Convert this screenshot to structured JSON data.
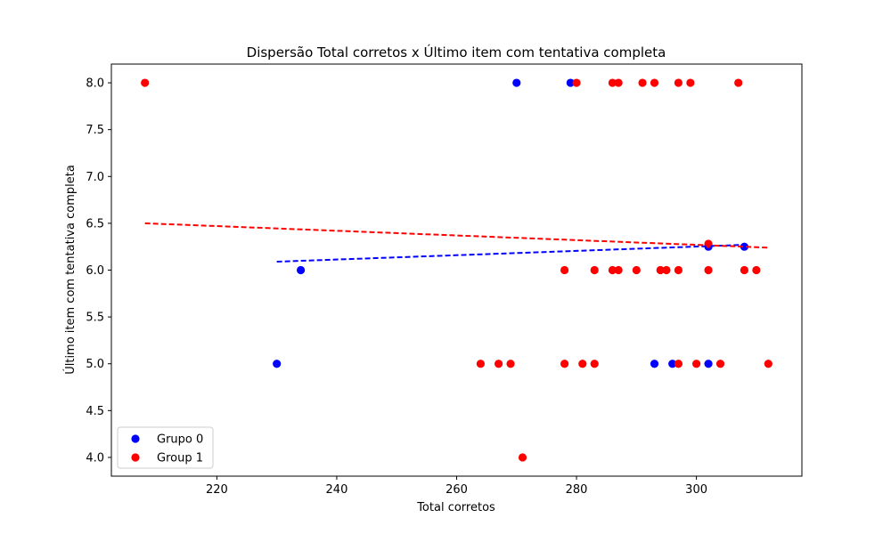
{
  "chart_data": {
    "type": "scatter",
    "title": "Dispersão Total corretos x Último item com tentativa completa",
    "xlabel": "Total corretos",
    "ylabel": "Último item com tentativa completa",
    "xlim": [
      202.4,
      317.6
    ],
    "ylim": [
      3.8,
      8.2
    ],
    "xticks": [
      220,
      240,
      260,
      280,
      300
    ],
    "yticks": [
      4.0,
      4.5,
      5.0,
      5.5,
      6.0,
      6.5,
      7.0,
      7.5,
      8.0
    ],
    "legend_position": "lower-left",
    "series": [
      {
        "name": "Grupo 0",
        "color": "#0000ff",
        "points": [
          {
            "x": 230,
            "y": 5
          },
          {
            "x": 234,
            "y": 6
          },
          {
            "x": 270,
            "y": 8
          },
          {
            "x": 279,
            "y": 8
          },
          {
            "x": 293,
            "y": 5
          },
          {
            "x": 296,
            "y": 5
          },
          {
            "x": 302,
            "y": 5
          },
          {
            "x": 302,
            "y": 6.25
          },
          {
            "x": 308,
            "y": 6.25
          }
        ],
        "trendline": {
          "x1": 230,
          "y1": 6.09,
          "x2": 308,
          "y2": 6.27,
          "style": "dashed"
        }
      },
      {
        "name": "Group 1",
        "color": "#ff0000",
        "points": [
          {
            "x": 208,
            "y": 8
          },
          {
            "x": 280,
            "y": 8
          },
          {
            "x": 286,
            "y": 8
          },
          {
            "x": 287,
            "y": 8
          },
          {
            "x": 291,
            "y": 8
          },
          {
            "x": 293,
            "y": 8
          },
          {
            "x": 297,
            "y": 8
          },
          {
            "x": 299,
            "y": 8
          },
          {
            "x": 307,
            "y": 8
          },
          {
            "x": 278,
            "y": 6
          },
          {
            "x": 283,
            "y": 6
          },
          {
            "x": 286,
            "y": 6
          },
          {
            "x": 287,
            "y": 6
          },
          {
            "x": 290,
            "y": 6
          },
          {
            "x": 294,
            "y": 6
          },
          {
            "x": 295,
            "y": 6
          },
          {
            "x": 297,
            "y": 6
          },
          {
            "x": 302,
            "y": 6
          },
          {
            "x": 308,
            "y": 6
          },
          {
            "x": 310,
            "y": 6
          },
          {
            "x": 302,
            "y": 6.28
          },
          {
            "x": 264,
            "y": 5
          },
          {
            "x": 267,
            "y": 5
          },
          {
            "x": 269,
            "y": 5
          },
          {
            "x": 278,
            "y": 5
          },
          {
            "x": 281,
            "y": 5
          },
          {
            "x": 283,
            "y": 5
          },
          {
            "x": 297,
            "y": 5
          },
          {
            "x": 300,
            "y": 5
          },
          {
            "x": 304,
            "y": 5
          },
          {
            "x": 312,
            "y": 5
          },
          {
            "x": 271,
            "y": 4
          }
        ],
        "trendline": {
          "x1": 208,
          "y1": 6.5,
          "x2": 312,
          "y2": 6.24,
          "style": "dashed"
        }
      }
    ]
  }
}
